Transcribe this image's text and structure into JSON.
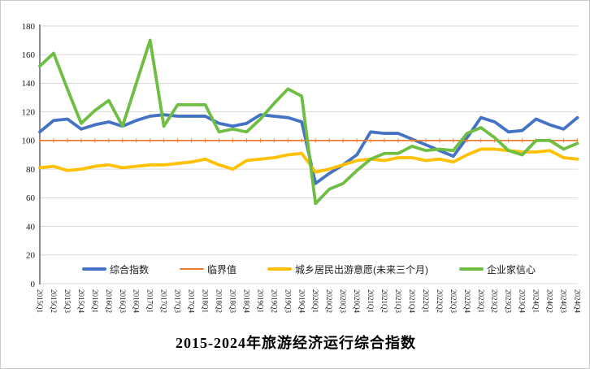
{
  "chart_data": {
    "type": "line",
    "title": "2015-2024年旅游经济运行综合指数",
    "xlabel": "",
    "ylabel": "",
    "ylim": [
      0,
      180
    ],
    "ytick_step": 20,
    "grid": true,
    "legend_position": "bottom-center-inside",
    "yticks": [
      "0",
      "20",
      "40",
      "60",
      "80",
      "100",
      "120",
      "140",
      "160",
      "180"
    ],
    "categories": [
      "2015Q1",
      "2015Q2",
      "2015Q3",
      "2015Q4",
      "2016Q1",
      "2016Q2",
      "2016Q3",
      "2016Q4",
      "2017Q1",
      "2017Q2",
      "2017Q3",
      "2017Q4",
      "2018Q1",
      "2018Q2",
      "2018Q3",
      "2018Q4",
      "2019Q1",
      "2019Q2",
      "2019Q3",
      "2019Q4",
      "2020Q1",
      "2020Q2",
      "2020Q3",
      "2020Q4",
      "2021Q1",
      "2021Q2",
      "2021Q3",
      "2021Q4",
      "2022Q1",
      "2022Q2",
      "2022Q3",
      "2022Q4",
      "2023Q1",
      "2023Q2",
      "2023Q3",
      "2023Q4",
      "2024Q1",
      "2024Q2",
      "2024Q3",
      "2024Q4"
    ],
    "series": [
      {
        "name": "综合指数",
        "color": "#4472C4",
        "line_width": 3.8,
        "marker": "none",
        "values": [
          106,
          114,
          115,
          108,
          111,
          113,
          110,
          114,
          117,
          118,
          117,
          117,
          117,
          112,
          110,
          112,
          118,
          117,
          116,
          113,
          70,
          77,
          83,
          90,
          106,
          105,
          105,
          101,
          97,
          93,
          89,
          102,
          116,
          113,
          106,
          107,
          115,
          111,
          108,
          116
        ]
      },
      {
        "name": "临界值",
        "color": "#ED7D31",
        "line_width": 1.8,
        "marker": "tick",
        "values": [
          100,
          100,
          100,
          100,
          100,
          100,
          100,
          100,
          100,
          100,
          100,
          100,
          100,
          100,
          100,
          100,
          100,
          100,
          100,
          100,
          100,
          100,
          100,
          100,
          100,
          100,
          100,
          100,
          100,
          100,
          100,
          100,
          100,
          100,
          100,
          100,
          100,
          100,
          100,
          100
        ]
      },
      {
        "name": "城乡居民出游意愿(未来三个月)",
        "color": "#FFC000",
        "line_width": 3.8,
        "marker": "none",
        "values": [
          81,
          82,
          79,
          80,
          82,
          83,
          81,
          82,
          83,
          83,
          84,
          85,
          87,
          83,
          80,
          86,
          87,
          88,
          90,
          91,
          78,
          80,
          83,
          86,
          87,
          86,
          88,
          88,
          86,
          87,
          85,
          90,
          94,
          94,
          93,
          92,
          92,
          93,
          88,
          87
        ]
      },
      {
        "name": "企业家信心",
        "color": "#6FBE44",
        "line_width": 3.8,
        "marker": "none",
        "values": [
          152,
          161,
          136,
          112,
          121,
          128,
          110,
          140,
          170,
          110,
          125,
          125,
          125,
          106,
          108,
          106,
          115,
          126,
          136,
          131,
          56,
          66,
          70,
          79,
          87,
          91,
          91,
          96,
          93,
          94,
          93,
          105,
          109,
          102,
          93,
          90,
          100,
          100,
          94,
          98
        ]
      }
    ],
    "axis_colors": {
      "gridline": "#d9d9d9",
      "axis_line": "#7f7f7f",
      "tick_label": "#1a1a1a"
    }
  }
}
